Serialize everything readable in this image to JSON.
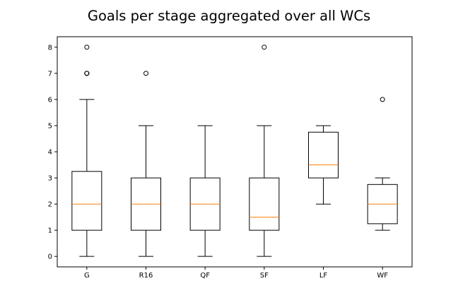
{
  "chart_data": {
    "type": "box",
    "title": "Goals per stage aggregated over all WCs",
    "xlabel": "",
    "ylabel": "",
    "ylim": [
      -0.4,
      8.4
    ],
    "yticks": [
      0,
      1,
      2,
      3,
      4,
      5,
      6,
      7,
      8
    ],
    "grid": false,
    "categories": [
      "G",
      "R16",
      "QF",
      "SF",
      "LF",
      "WF"
    ],
    "boxes": [
      {
        "label": "G",
        "whislo": 0,
        "q1": 1,
        "median": 2,
        "q3": 3.25,
        "whishi": 6,
        "fliers": [
          7,
          7,
          7,
          8
        ]
      },
      {
        "label": "R16",
        "whislo": 0,
        "q1": 1,
        "median": 2,
        "q3": 3,
        "whishi": 5,
        "fliers": [
          7
        ]
      },
      {
        "label": "QF",
        "whislo": 0,
        "q1": 1,
        "median": 2,
        "q3": 3,
        "whishi": 5,
        "fliers": []
      },
      {
        "label": "SF",
        "whislo": 0,
        "q1": 1,
        "median": 1.5,
        "q3": 3,
        "whishi": 5,
        "fliers": [
          8
        ]
      },
      {
        "label": "LF",
        "whislo": 2,
        "q1": 3,
        "median": 3.5,
        "q3": 4.75,
        "whishi": 5,
        "fliers": []
      },
      {
        "label": "WF",
        "whislo": 1,
        "q1": 1.25,
        "median": 2,
        "q3": 2.75,
        "whishi": 3,
        "fliers": [
          6
        ]
      }
    ],
    "colors": {
      "box": "#000000",
      "median": "#ff7f0e",
      "flier": "#000000"
    }
  }
}
